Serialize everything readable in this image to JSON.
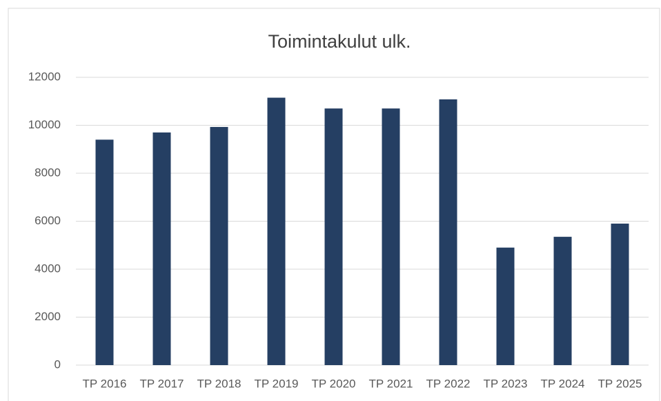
{
  "chart_data": {
    "type": "bar",
    "title": "Toimintakulut ulk.",
    "categories": [
      "TP 2016",
      "TP 2017",
      "TP 2018",
      "TP 2019",
      "TP 2020",
      "TP 2021",
      "TP 2022",
      "TP 2023",
      "TP 2024",
      "TP 2025"
    ],
    "values": [
      9400,
      9700,
      9930,
      11150,
      10700,
      10700,
      11080,
      4900,
      5350,
      5900
    ],
    "color": "#253f63",
    "ylim": [
      0,
      12000
    ],
    "yticks": [
      0,
      2000,
      4000,
      6000,
      8000,
      10000,
      12000
    ],
    "grid": true
  }
}
